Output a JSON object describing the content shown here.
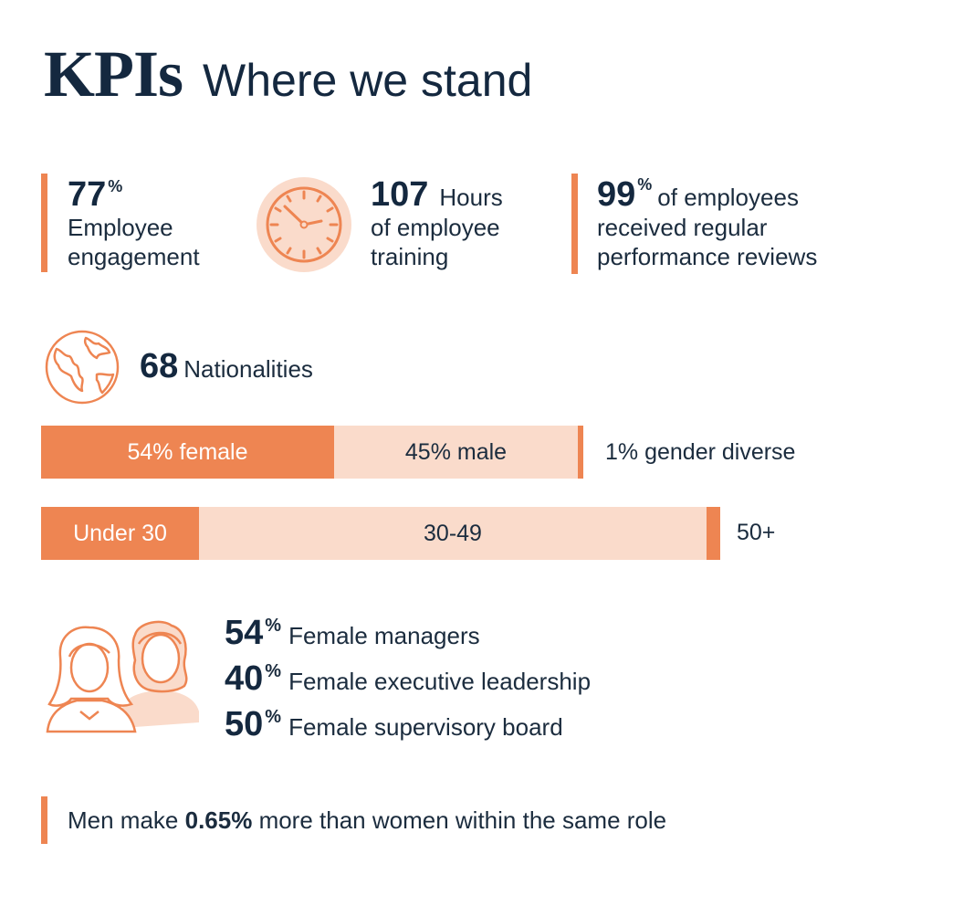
{
  "header": {
    "title": "KPIs",
    "subtitle": "Where we stand"
  },
  "kpis": {
    "engagement": {
      "value": "77",
      "unit": "%",
      "label_line1": "Employee",
      "label_line2": "engagement"
    },
    "training": {
      "value": "107",
      "unit_word": "Hours",
      "label_line1": "of employee",
      "label_line2": "training",
      "icon": "clock-icon"
    },
    "reviews": {
      "value": "99",
      "unit": "%",
      "text_line1": "of employees",
      "text_line2": "received regular",
      "text_line3": "performance reviews"
    },
    "nationalities": {
      "value": "68",
      "label": "Nationalities",
      "icon": "globe-icon"
    }
  },
  "gender_bar": {
    "female_label": "54% female",
    "female_pct": 54,
    "male_label": "45% male",
    "male_pct": 45,
    "diverse_label": "1% gender diverse",
    "diverse_pct": 1
  },
  "age_bar": {
    "under30_label": "Under 30",
    "mid_label": "30-49",
    "over50_label": "50+"
  },
  "leadership": {
    "icon": "female-group-icon",
    "items": [
      {
        "value": "54",
        "unit": "%",
        "label": "Female managers"
      },
      {
        "value": "40",
        "unit": "%",
        "label": "Female executive leadership"
      },
      {
        "value": "50",
        "unit": "%",
        "label": "Female supervisory board"
      }
    ]
  },
  "pay_gap": {
    "prefix": "Men make ",
    "value": "0.65%",
    "suffix": " more than women within the same role"
  },
  "colors": {
    "accent": "#ee8552",
    "accent_light": "#fadbcb",
    "navy": "#14283f"
  }
}
